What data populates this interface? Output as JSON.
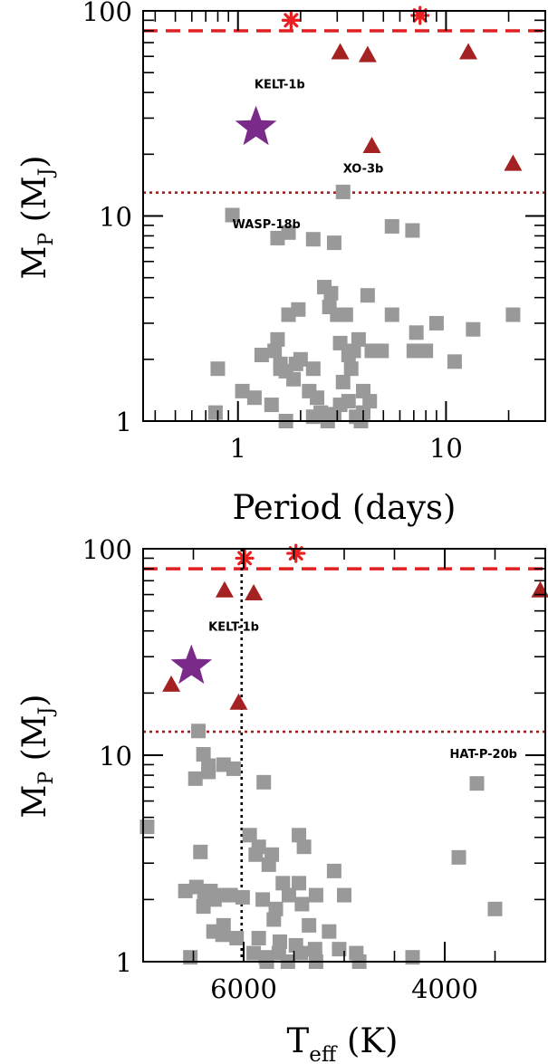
{
  "chart_data": [
    {
      "type": "scatter",
      "xscale": "log",
      "yscale": "log",
      "xlim": [
        0.35,
        30
      ],
      "ylim": [
        1,
        100
      ],
      "xlabel": "Period (days)",
      "ylabel": {
        "main": "M",
        "sub1": "P",
        "open": " (M",
        "sub2": "J",
        "close": ")"
      },
      "xticks": [
        {
          "v": 1,
          "label": "1"
        },
        {
          "v": 10,
          "label": "10"
        }
      ],
      "yticks": [
        {
          "v": 1,
          "label": "1"
        },
        {
          "v": 10,
          "label": "10"
        },
        {
          "v": 100,
          "label": "100"
        }
      ],
      "reference_lines": [
        {
          "style": "dashed",
          "color": "#e02020",
          "y": 80
        },
        {
          "style": "dotted",
          "color": "#a02020",
          "y": 13
        }
      ],
      "annotations": [
        {
          "text": "KELT-1b",
          "x": 1.2,
          "y": 42
        },
        {
          "text": "XO-3b",
          "x": 3.2,
          "y": 16.3
        },
        {
          "text": "WASP-18b",
          "x": 0.94,
          "y": 8.7
        }
      ],
      "series": [
        {
          "marker": "star",
          "color": "#7a2a88",
          "points": [
            [
              1.22,
              27
            ]
          ]
        },
        {
          "marker": "asterisk",
          "color": "#e82020",
          "points": [
            [
              1.8,
              90
            ],
            [
              7.5,
              95
            ]
          ]
        },
        {
          "marker": "triangle",
          "color": "#a52222",
          "points": [
            [
              3.1,
              63
            ],
            [
              4.2,
              61
            ],
            [
              12.8,
              63
            ],
            [
              4.4,
              22
            ],
            [
              21,
              18
            ]
          ]
        },
        {
          "marker": "square",
          "color": "#999999",
          "points": [
            [
              0.94,
              10.1
            ],
            [
              1.55,
              7.8
            ],
            [
              1.75,
              8.3
            ],
            [
              2.3,
              7.7
            ],
            [
              2.9,
              7.4
            ],
            [
              3.2,
              13.1
            ],
            [
              5.5,
              8.9
            ],
            [
              6.9,
              8.5
            ],
            [
              2.6,
              4.5
            ],
            [
              2.8,
              4.2
            ],
            [
              2.75,
              3.6
            ],
            [
              3.0,
              3.3
            ],
            [
              3.3,
              3.3
            ],
            [
              4.2,
              4.1
            ],
            [
              1.75,
              3.3
            ],
            [
              1.95,
              3.5
            ],
            [
              5.5,
              3.3
            ],
            [
              7.2,
              2.7
            ],
            [
              9.0,
              3.0
            ],
            [
              13.5,
              2.8
            ],
            [
              21,
              3.3
            ],
            [
              1.3,
              2.1
            ],
            [
              1.55,
              2.5
            ],
            [
              1.5,
              2.2
            ],
            [
              1.6,
              1.9
            ],
            [
              1.9,
              1.9
            ],
            [
              2.0,
              2.0
            ],
            [
              2.3,
              1.8
            ],
            [
              3.1,
              2.4
            ],
            [
              3.4,
              2.1
            ],
            [
              3.6,
              2.2
            ],
            [
              3.8,
              2.5
            ],
            [
              4.4,
              2.2
            ],
            [
              4.9,
              2.2
            ],
            [
              7.0,
              2.2
            ],
            [
              8.0,
              2.2
            ],
            [
              11,
              1.95
            ],
            [
              0.8,
              1.8
            ],
            [
              1.05,
              1.4
            ],
            [
              1.2,
              1.3
            ],
            [
              1.6,
              1.8
            ],
            [
              1.7,
              1.75
            ],
            [
              1.85,
              1.6
            ],
            [
              2.2,
              1.4
            ],
            [
              2.4,
              1.3
            ],
            [
              3.2,
              1.55
            ],
            [
              3.5,
              1.8
            ],
            [
              4.0,
              1.4
            ],
            [
              0.78,
              1.1
            ],
            [
              1.45,
              1.2
            ],
            [
              1.7,
              1.0
            ],
            [
              2.3,
              1.05
            ],
            [
              2.5,
              1.1
            ],
            [
              2.9,
              1.08
            ],
            [
              3.1,
              1.2
            ],
            [
              3.4,
              1.25
            ],
            [
              3.7,
              1.05
            ],
            [
              4.0,
              1.1
            ],
            [
              4.3,
              1.25
            ],
            [
              2.7,
              1.0
            ],
            [
              3.9,
              1.0
            ]
          ]
        }
      ]
    },
    {
      "type": "scatter",
      "xscale": "linear",
      "yscale": "log",
      "xlim": [
        7000,
        3000
      ],
      "ylim": [
        1,
        100
      ],
      "xlabel": {
        "main": "T",
        "sub": "eff",
        "rest": " (K)"
      },
      "ylabel": {
        "main": "M",
        "sub1": "P",
        "open": " (M",
        "sub2": "J",
        "close": ")"
      },
      "xticks": [
        {
          "v": 6000,
          "label": "6000"
        },
        {
          "v": 4000,
          "label": "4000"
        }
      ],
      "yticks": [
        {
          "v": 1,
          "label": "1"
        },
        {
          "v": 10,
          "label": "10"
        },
        {
          "v": 100,
          "label": "100"
        }
      ],
      "reference_lines": [
        {
          "style": "dashed",
          "color": "#e02020",
          "y": 80
        },
        {
          "style": "dotted",
          "color": "#a02020",
          "y": 13
        },
        {
          "style": "dotted",
          "color": "#000000",
          "x": 6020
        }
      ],
      "annotations": [
        {
          "text": "KELT-1b",
          "x": 6350,
          "y": 40
        },
        {
          "text": "HAT-P-20b",
          "x": 3950,
          "y": 9.7
        }
      ],
      "series": [
        {
          "marker": "star",
          "color": "#7a2a88",
          "points": [
            [
              6520,
              27
            ]
          ]
        },
        {
          "marker": "asterisk",
          "color": "#e82020",
          "points": [
            [
              5990,
              90
            ],
            [
              5480,
              95
            ]
          ]
        },
        {
          "marker": "triangle",
          "color": "#a52222",
          "points": [
            [
              6190,
              63
            ],
            [
              5900,
              61
            ],
            [
              3050,
              63
            ],
            [
              6720,
              22
            ],
            [
              6050,
              18
            ]
          ]
        },
        {
          "marker": "square",
          "color": "#999999",
          "points": [
            [
              6450,
              13.1
            ],
            [
              6400,
              10.1
            ],
            [
              6350,
              8.9
            ],
            [
              6200,
              9
            ],
            [
              6100,
              8.6
            ],
            [
              6480,
              7.7
            ],
            [
              6350,
              8.3
            ],
            [
              5800,
              7.4
            ],
            [
              3680,
              7.3
            ],
            [
              6960,
              4.5
            ],
            [
              5940,
              4.1
            ],
            [
              5850,
              3.6
            ],
            [
              5450,
              4.1
            ],
            [
              5400,
              3.6
            ],
            [
              5880,
              3.3
            ],
            [
              5720,
              3.3
            ],
            [
              6430,
              3.4
            ],
            [
              5750,
              2.95
            ],
            [
              5100,
              2.75
            ],
            [
              3860,
              3.2
            ],
            [
              6580,
              2.2
            ],
            [
              6470,
              2.3
            ],
            [
              6390,
              2.1
            ],
            [
              6330,
              2.2
            ],
            [
              6290,
              2.0
            ],
            [
              6200,
              2.1
            ],
            [
              6130,
              2.1
            ],
            [
              6010,
              2.05
            ],
            [
              5810,
              2.0
            ],
            [
              5550,
              2.1
            ],
            [
              5450,
              2.4
            ],
            [
              5420,
              1.9
            ],
            [
              5280,
              2.1
            ],
            [
              5000,
              2.1
            ],
            [
              5610,
              2.4
            ],
            [
              5680,
              1.8
            ],
            [
              3500,
              1.8
            ],
            [
              6400,
              1.85
            ],
            [
              6200,
              1.5
            ],
            [
              5700,
              1.6
            ],
            [
              5350,
              1.5
            ],
            [
              6300,
              1.4
            ],
            [
              6210,
              1.35
            ],
            [
              6070,
              1.3
            ],
            [
              5850,
              1.3
            ],
            [
              5640,
              1.25
            ],
            [
              5480,
              1.2
            ],
            [
              5150,
              1.4
            ],
            [
              6530,
              1.05
            ],
            [
              5900,
              1.1
            ],
            [
              5780,
              1.05
            ],
            [
              5650,
              1.1
            ],
            [
              5430,
              1.1
            ],
            [
              5290,
              1.15
            ],
            [
              5050,
              1.15
            ],
            [
              4880,
              1.1
            ],
            [
              4320,
              1.05
            ],
            [
              5770,
              1.0
            ],
            [
              5560,
              1.0
            ],
            [
              4850,
              1.0
            ],
            [
              5280,
              1.0
            ]
          ]
        }
      ]
    }
  ]
}
